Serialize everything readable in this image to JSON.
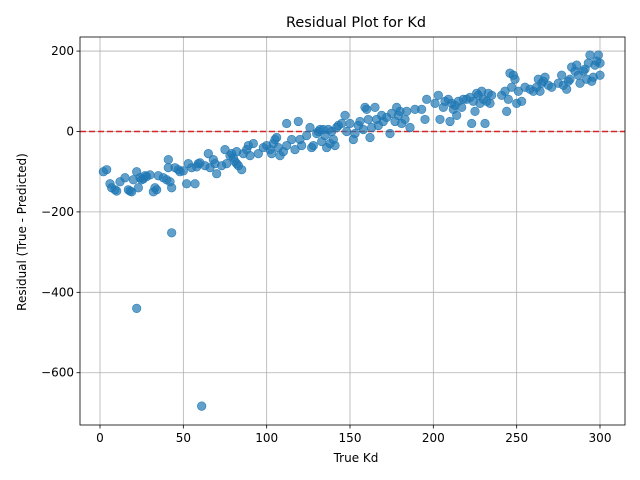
{
  "chart_data": {
    "type": "scatter",
    "title": "Residual Plot for Kd",
    "xlabel": "True Kd",
    "ylabel": "Residual (True - Predicted)",
    "xlim": [
      -12,
      315
    ],
    "ylim": [
      -730,
      235
    ],
    "xticks": [
      0,
      50,
      100,
      150,
      200,
      250,
      300
    ],
    "yticks": [
      -600,
      -400,
      -200,
      0,
      200
    ],
    "xtick_labels": [
      "0",
      "50",
      "100",
      "150",
      "200",
      "250",
      "300"
    ],
    "ytick_labels": [
      "−600",
      "−400",
      "−200",
      "0",
      "200"
    ],
    "grid": true,
    "point_color": "#1f77b4",
    "point_alpha": 0.7,
    "reference_line": {
      "y": 0,
      "color": "#d62728",
      "style": "dashed"
    },
    "series": [
      {
        "points": [
          [
            2,
            -100
          ],
          [
            4,
            -95
          ],
          [
            6,
            -130
          ],
          [
            7,
            -140
          ],
          [
            9,
            -145
          ],
          [
            10,
            -148
          ],
          [
            12,
            -125
          ],
          [
            15,
            -115
          ],
          [
            17,
            -145
          ],
          [
            18,
            -148
          ],
          [
            19,
            -150
          ],
          [
            20,
            -120
          ],
          [
            22,
            -100
          ],
          [
            22,
            -440
          ],
          [
            23,
            -140
          ],
          [
            24,
            -115
          ],
          [
            25,
            -120
          ],
          [
            26,
            -118
          ],
          [
            27,
            -110
          ],
          [
            28,
            -112
          ],
          [
            30,
            -108
          ],
          [
            32,
            -150
          ],
          [
            33,
            -140
          ],
          [
            34,
            -145
          ],
          [
            35,
            -110
          ],
          [
            38,
            -115
          ],
          [
            40,
            -120
          ],
          [
            41,
            -70
          ],
          [
            41,
            -90
          ],
          [
            42,
            -125
          ],
          [
            43,
            -140
          ],
          [
            43,
            -252
          ],
          [
            45,
            -90
          ],
          [
            47,
            -95
          ],
          [
            48,
            -100
          ],
          [
            50,
            -98
          ],
          [
            52,
            -130
          ],
          [
            53,
            -80
          ],
          [
            55,
            -90
          ],
          [
            57,
            -130
          ],
          [
            58,
            -88
          ],
          [
            59,
            -80
          ],
          [
            60,
            -78
          ],
          [
            61,
            -683
          ],
          [
            63,
            -85
          ],
          [
            65,
            -55
          ],
          [
            66,
            -90
          ],
          [
            68,
            -70
          ],
          [
            69,
            -80
          ],
          [
            70,
            -105
          ],
          [
            73,
            -85
          ],
          [
            75,
            -45
          ],
          [
            76,
            -80
          ],
          [
            78,
            -60
          ],
          [
            79,
            -55
          ],
          [
            80,
            -65
          ],
          [
            81,
            -75
          ],
          [
            82,
            -80
          ],
          [
            82,
            -50
          ],
          [
            83,
            -85
          ],
          [
            85,
            -95
          ],
          [
            86,
            -55
          ],
          [
            88,
            -45
          ],
          [
            89,
            -35
          ],
          [
            90,
            -60
          ],
          [
            92,
            -30
          ],
          [
            95,
            -55
          ],
          [
            98,
            -40
          ],
          [
            100,
            -35
          ],
          [
            102,
            -45
          ],
          [
            103,
            -55
          ],
          [
            104,
            -30
          ],
          [
            105,
            -20
          ],
          [
            106,
            -15
          ],
          [
            107,
            -40
          ],
          [
            108,
            -60
          ],
          [
            110,
            -50
          ],
          [
            112,
            -35
          ],
          [
            112,
            20
          ],
          [
            115,
            -20
          ],
          [
            117,
            -45
          ],
          [
            119,
            25
          ],
          [
            120,
            -20
          ],
          [
            121,
            -35
          ],
          [
            124,
            -10
          ],
          [
            126,
            10
          ],
          [
            127,
            -40
          ],
          [
            128,
            -35
          ],
          [
            130,
            -5
          ],
          [
            131,
            0
          ],
          [
            132,
            5
          ],
          [
            133,
            -25
          ],
          [
            134,
            5
          ],
          [
            135,
            -10
          ],
          [
            136,
            -40
          ],
          [
            137,
            5
          ],
          [
            138,
            -30
          ],
          [
            139,
            0
          ],
          [
            140,
            -20
          ],
          [
            141,
            -35
          ],
          [
            142,
            10
          ],
          [
            143,
            15
          ],
          [
            145,
            20
          ],
          [
            147,
            40
          ],
          [
            148,
            0
          ],
          [
            150,
            20
          ],
          [
            152,
            -20
          ],
          [
            153,
            -5
          ],
          [
            155,
            15
          ],
          [
            156,
            25
          ],
          [
            158,
            5
          ],
          [
            159,
            60
          ],
          [
            160,
            55
          ],
          [
            161,
            30
          ],
          [
            162,
            -15
          ],
          [
            163,
            10
          ],
          [
            165,
            60
          ],
          [
            166,
            30
          ],
          [
            167,
            15
          ],
          [
            169,
            40
          ],
          [
            170,
            25
          ],
          [
            172,
            35
          ],
          [
            174,
            -5
          ],
          [
            175,
            45
          ],
          [
            177,
            25
          ],
          [
            178,
            60
          ],
          [
            179,
            40
          ],
          [
            180,
            50
          ],
          [
            181,
            20
          ],
          [
            183,
            30
          ],
          [
            184,
            50
          ],
          [
            186,
            10
          ],
          [
            189,
            55
          ],
          [
            193,
            55
          ],
          [
            195,
            30
          ],
          [
            196,
            80
          ],
          [
            201,
            70
          ],
          [
            203,
            90
          ],
          [
            204,
            30
          ],
          [
            206,
            60
          ],
          [
            207,
            75
          ],
          [
            209,
            80
          ],
          [
            210,
            25
          ],
          [
            211,
            70
          ],
          [
            212,
            55
          ],
          [
            213,
            65
          ],
          [
            214,
            40
          ],
          [
            215,
            75
          ],
          [
            217,
            60
          ],
          [
            218,
            80
          ],
          [
            220,
            80
          ],
          [
            222,
            85
          ],
          [
            223,
            20
          ],
          [
            224,
            75
          ],
          [
            225,
            50
          ],
          [
            226,
            95
          ],
          [
            227,
            90
          ],
          [
            228,
            70
          ],
          [
            229,
            100
          ],
          [
            230,
            80
          ],
          [
            231,
            20
          ],
          [
            232,
            75
          ],
          [
            233,
            95
          ],
          [
            234,
            70
          ],
          [
            235,
            90
          ],
          [
            241,
            90
          ],
          [
            243,
            100
          ],
          [
            244,
            50
          ],
          [
            245,
            80
          ],
          [
            246,
            145
          ],
          [
            247,
            110
          ],
          [
            248,
            140
          ],
          [
            249,
            130
          ],
          [
            250,
            70
          ],
          [
            251,
            100
          ],
          [
            253,
            75
          ],
          [
            255,
            110
          ],
          [
            258,
            105
          ],
          [
            260,
            100
          ],
          [
            262,
            110
          ],
          [
            263,
            130
          ],
          [
            264,
            100
          ],
          [
            265,
            120
          ],
          [
            266,
            125
          ],
          [
            267,
            135
          ],
          [
            269,
            115
          ],
          [
            271,
            110
          ],
          [
            275,
            120
          ],
          [
            277,
            140
          ],
          [
            278,
            115
          ],
          [
            280,
            105
          ],
          [
            281,
            125
          ],
          [
            282,
            130
          ],
          [
            283,
            160
          ],
          [
            285,
            150
          ],
          [
            286,
            165
          ],
          [
            287,
            140
          ],
          [
            288,
            120
          ],
          [
            290,
            150
          ],
          [
            291,
            155
          ],
          [
            292,
            130
          ],
          [
            293,
            170
          ],
          [
            294,
            190
          ],
          [
            295,
            125
          ],
          [
            296,
            135
          ],
          [
            297,
            165
          ],
          [
            298,
            175
          ],
          [
            299,
            190
          ],
          [
            300,
            140
          ],
          [
            300,
            170
          ]
        ]
      }
    ]
  }
}
